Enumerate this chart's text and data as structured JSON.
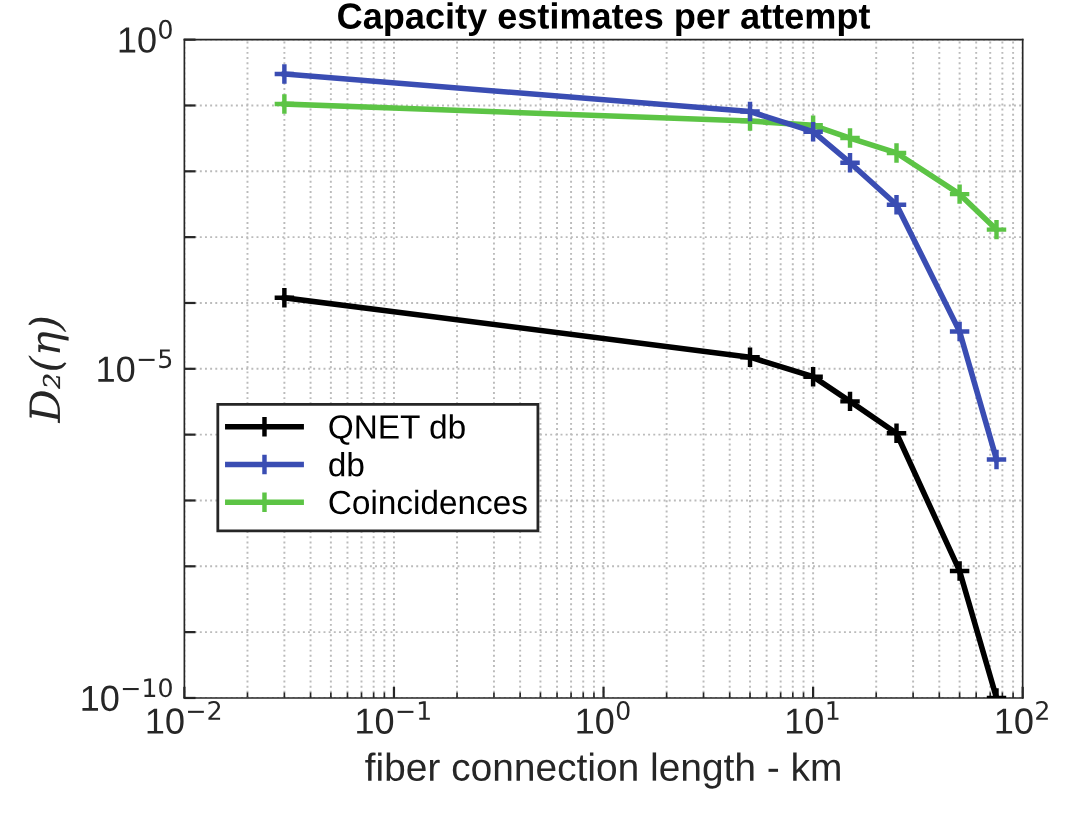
{
  "chart_data": {
    "type": "line",
    "title": "Capacity estimates per attempt",
    "xlabel": "fiber connection length - km",
    "ylabel": "D₂(η)",
    "log": "xy",
    "grid": true,
    "marker": "cross",
    "line_style": "solid",
    "legend": "center left",
    "x": [
      0.03,
      5,
      10,
      15,
      25,
      50,
      75
    ],
    "xlim": [
      0.01,
      100
    ],
    "ylim": [
      1e-10,
      1
    ],
    "xticks": [
      {
        "value": 0.01,
        "label": "10$^{−2}$"
      },
      {
        "value": 0.1,
        "label": "10$^{−1}$"
      },
      {
        "value": 1,
        "label": "10$^{0}$"
      },
      {
        "value": 10,
        "label": "10$^{1}$"
      },
      {
        "value": 100,
        "label": "10$^{2}$"
      }
    ],
    "yticks": [
      {
        "value": 1e-10,
        "label": "10$^{−10}$"
      },
      {
        "value": 1e-09,
        "label": null
      },
      {
        "value": 1e-08,
        "label": null
      },
      {
        "value": 1e-07,
        "label": null
      },
      {
        "value": 1e-06,
        "label": null
      },
      {
        "value": 1e-05,
        "label": "10$^{−5}$"
      },
      {
        "value": 0.0001,
        "label": null
      },
      {
        "value": 0.001,
        "label": null
      },
      {
        "value": 0.01,
        "label": null
      },
      {
        "value": 0.1,
        "label": null
      },
      {
        "value": 1,
        "label": "10$^{0}$"
      }
    ],
    "series": [
      {
        "name": "QNET db",
        "color": "#000000",
        "values": [
          0.00012,
          1.5e-05,
          7.6e-06,
          3.2e-06,
          1.05e-06,
          8.5e-09,
          1e-10
        ]
      },
      {
        "name": "db",
        "color": "#3a4db3",
        "values": [
          0.3,
          0.081,
          0.04,
          0.0135,
          0.0031,
          3.7e-05,
          4.2e-07
        ]
      },
      {
        "name": "Coincidences",
        "color": "#5cc445",
        "values": [
          0.105,
          0.058,
          0.05,
          0.032,
          0.019,
          0.0045,
          0.0013
        ]
      }
    ]
  }
}
